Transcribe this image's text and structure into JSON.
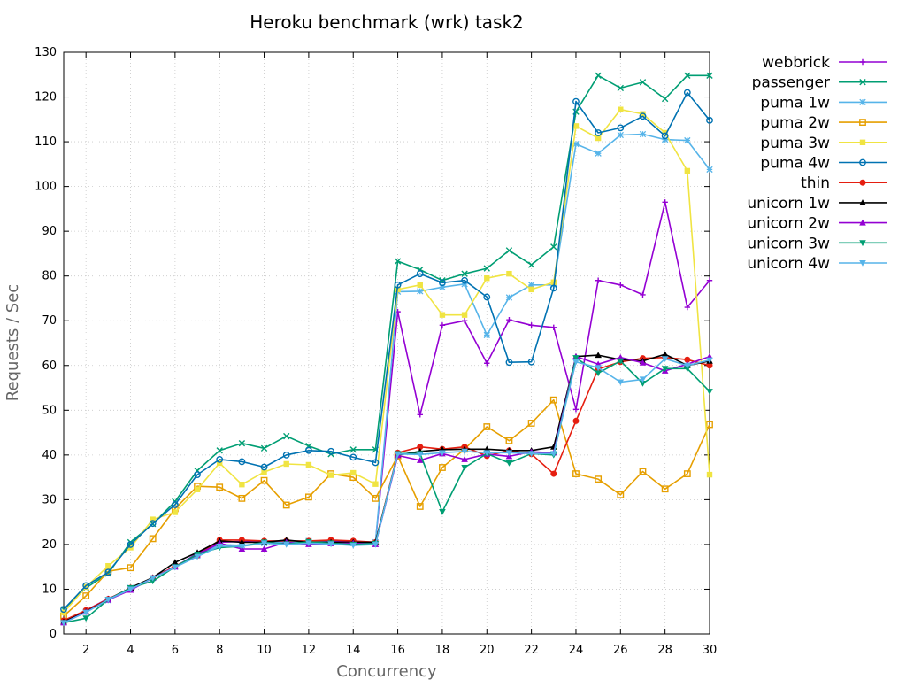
{
  "chart_data": {
    "type": "line",
    "title": "Heroku benchmark (wrk) task2",
    "xlabel": "Concurrency",
    "ylabel": "Requests / Sec",
    "xlim": [
      1,
      30
    ],
    "ylim": [
      0,
      130
    ],
    "xticks": [
      2,
      4,
      6,
      8,
      10,
      12,
      14,
      16,
      18,
      20,
      22,
      24,
      26,
      28,
      30
    ],
    "yticks": [
      0,
      10,
      20,
      30,
      40,
      50,
      60,
      70,
      80,
      90,
      100,
      110,
      120,
      130
    ],
    "grid": true,
    "legend_position": "outside-right",
    "x": [
      1,
      2,
      3,
      4,
      5,
      6,
      7,
      8,
      9,
      10,
      11,
      12,
      13,
      14,
      15,
      16,
      17,
      18,
      19,
      20,
      21,
      22,
      23,
      24,
      25,
      26,
      27,
      28,
      29,
      30
    ],
    "series": [
      {
        "name": "webbrick",
        "color": "#9400d3",
        "marker": "plus",
        "values": [
          2.5,
          5.3,
          7.9,
          10.0,
          12.5,
          15.0,
          18.0,
          20.5,
          20.7,
          20.5,
          20.5,
          20.7,
          20.7,
          20.7,
          20.5,
          72.0,
          49.0,
          69.0,
          70.0,
          60.5,
          70.2,
          69.0,
          68.5,
          50.2,
          79.0,
          78.0,
          75.8,
          96.5,
          73.0,
          79.0
        ]
      },
      {
        "name": "passenger",
        "color": "#009e73",
        "marker": "x",
        "values": [
          5.5,
          10.3,
          13.5,
          20.5,
          24.6,
          29.6,
          36.5,
          41.0,
          42.6,
          41.5,
          44.2,
          42.0,
          40.2,
          41.2,
          41.2,
          83.3,
          81.4,
          79.0,
          80.5,
          81.7,
          85.7,
          82.5,
          86.5,
          116.7,
          124.8,
          122.0,
          123.3,
          119.6,
          124.8,
          124.8
        ]
      },
      {
        "name": "puma 1w",
        "color": "#56b4e9",
        "marker": "star",
        "values": [
          3.0,
          5.0,
          7.5,
          10.3,
          12.5,
          15.0,
          17.5,
          20.0,
          19.8,
          20.3,
          20.5,
          20.8,
          20.5,
          20.3,
          20.5,
          76.5,
          76.6,
          77.5,
          78.2,
          66.8,
          75.2,
          78.0,
          78.0,
          109.5,
          107.4,
          111.5,
          111.7,
          110.5,
          110.3,
          103.8
        ]
      },
      {
        "name": "puma 2w",
        "color": "#e69f00",
        "marker": "square-open",
        "values": [
          4.0,
          8.5,
          14.0,
          14.8,
          21.3,
          28.0,
          33.0,
          32.8,
          30.3,
          34.3,
          28.8,
          30.6,
          35.8,
          35.0,
          30.3,
          39.8,
          28.5,
          37.2,
          41.3,
          46.3,
          43.2,
          47.1,
          52.3,
          35.8,
          34.6,
          31.1,
          36.3,
          32.4,
          35.8,
          46.8
        ]
      },
      {
        "name": "puma 3w",
        "color": "#f0e442",
        "marker": "square",
        "values": [
          4.8,
          10.5,
          15.2,
          19.3,
          25.6,
          27.2,
          32.3,
          38.2,
          33.4,
          36.2,
          38.0,
          37.8,
          35.5,
          36.0,
          33.5,
          77.0,
          78.0,
          71.3,
          71.3,
          79.5,
          80.5,
          77.0,
          78.6,
          113.5,
          110.8,
          117.2,
          116.2,
          112.0,
          103.5,
          35.6
        ]
      },
      {
        "name": "puma 4w",
        "color": "#0072b2",
        "marker": "circle-open",
        "values": [
          5.5,
          10.8,
          13.8,
          20.0,
          24.7,
          28.9,
          35.6,
          39.0,
          38.5,
          37.3,
          40.0,
          41.0,
          40.8,
          39.5,
          38.3,
          78.0,
          80.5,
          78.5,
          79.0,
          75.3,
          60.7,
          60.8,
          77.3,
          119.0,
          112.0,
          113.1,
          115.7,
          111.3,
          121.0,
          114.8
        ]
      },
      {
        "name": "thin",
        "color": "#e51e10",
        "marker": "circle",
        "values": [
          3.0,
          5.3,
          7.8,
          10.3,
          12.5,
          15.2,
          17.5,
          21.0,
          21.0,
          20.8,
          20.8,
          20.8,
          21.0,
          20.8,
          20.5,
          40.5,
          41.8,
          41.3,
          41.8,
          39.8,
          41.0,
          40.2,
          35.8,
          47.6,
          59.2,
          60.8,
          61.6,
          61.8,
          61.3,
          60.0
        ]
      },
      {
        "name": "unicorn 1w",
        "color": "#000000",
        "marker": "triangle",
        "values": [
          2.7,
          5.0,
          7.7,
          10.3,
          12.6,
          16.0,
          18.2,
          20.8,
          20.5,
          20.5,
          21.0,
          20.5,
          20.5,
          20.5,
          20.5,
          40.0,
          40.8,
          41.2,
          41.3,
          41.3,
          41.0,
          41.0,
          41.8,
          62.0,
          62.3,
          61.3,
          61.0,
          62.5,
          60.0,
          61.0
        ]
      },
      {
        "name": "unicorn 2w",
        "color": "#9400d3",
        "marker": "triangle",
        "values": [
          2.5,
          4.9,
          7.6,
          9.8,
          12.5,
          15.0,
          17.7,
          20.3,
          19.0,
          19.0,
          20.5,
          20.0,
          20.2,
          20.3,
          20.0,
          39.9,
          38.8,
          40.3,
          39.0,
          40.2,
          39.7,
          40.7,
          40.5,
          62.0,
          60.3,
          61.8,
          60.6,
          58.8,
          60.3,
          62.0
        ]
      },
      {
        "name": "unicorn 3w",
        "color": "#009e73",
        "marker": "triangle-down",
        "values": [
          2.5,
          3.5,
          7.7,
          10.3,
          11.8,
          15.0,
          17.8,
          19.3,
          19.6,
          20.5,
          20.1,
          20.6,
          20.3,
          20.0,
          20.2,
          40.3,
          40.3,
          27.3,
          37.2,
          40.3,
          38.2,
          40.3,
          40.0,
          61.7,
          58.3,
          61.0,
          56.0,
          59.3,
          59.3,
          54.2
        ]
      },
      {
        "name": "unicorn 4w",
        "color": "#56b4e9",
        "marker": "triangle-down",
        "values": [
          2.5,
          4.8,
          7.7,
          10.0,
          12.5,
          14.9,
          17.3,
          19.6,
          19.6,
          20.3,
          20.0,
          20.3,
          20.1,
          19.8,
          20.0,
          40.2,
          40.1,
          40.5,
          40.8,
          40.5,
          40.5,
          40.3,
          40.3,
          60.8,
          59.5,
          56.3,
          56.9,
          61.5,
          60.0,
          61.2
        ]
      }
    ]
  }
}
